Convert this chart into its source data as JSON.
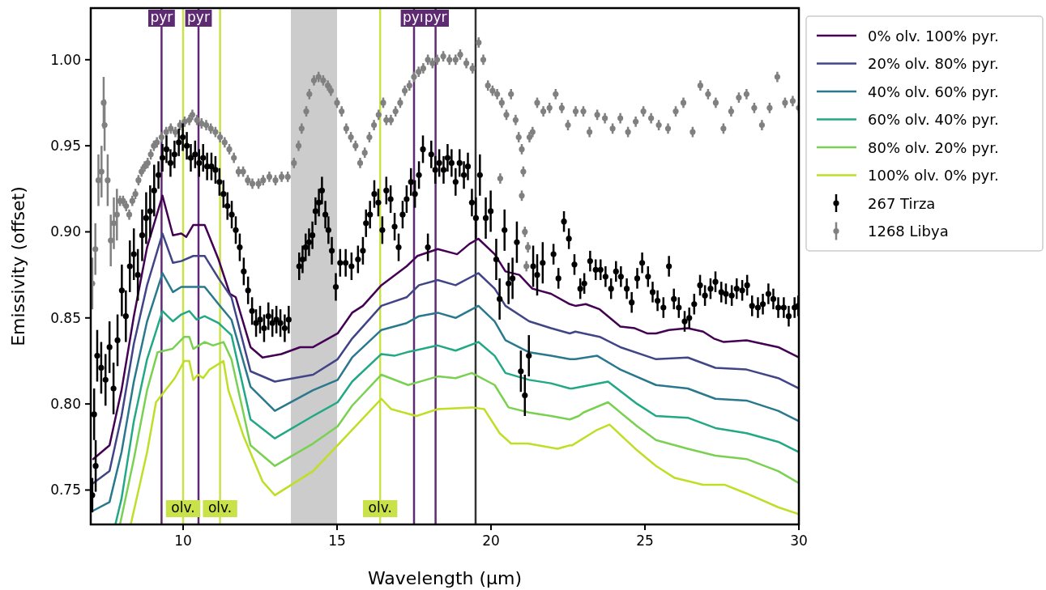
{
  "chart_data": {
    "type": "line",
    "xlabel": "Wavelength (μm)",
    "ylabel": "Emissivity (offset)",
    "xlim": [
      7,
      30
    ],
    "xticks": [
      10,
      15,
      20,
      25,
      30
    ],
    "ylim": [
      0.73,
      1.03
    ],
    "yticks": [
      0.75,
      {
        "value": 0.8,
        "label": "0.80"
      },
      0.85,
      {
        "value": 0.9,
        "label": "0.90"
      },
      0.95,
      {
        "value": 1,
        "label": "1.00"
      }
    ],
    "grid": false,
    "legend": "right",
    "line_style": "solid",
    "bands": [
      {
        "axis": "x",
        "from": 13.5,
        "to": 15,
        "color": "#cccccc"
      }
    ],
    "ref_lines": [
      {
        "axis": "x",
        "value": 9.3,
        "label": "pyr",
        "color": "#5e2a72"
      },
      {
        "axis": "x",
        "value": 10.5,
        "label": "pyr",
        "color": "#5e2a72"
      },
      {
        "axis": "x",
        "value": 17.5,
        "label": "pyr",
        "color": "#5e2a72"
      },
      {
        "axis": "x",
        "value": 18.2,
        "label": "pyr",
        "color": "#5e2a72"
      },
      {
        "axis": "x",
        "value": 10,
        "label": "olv.",
        "color": "#c9e24a"
      },
      {
        "axis": "x",
        "value": 11.2,
        "label": "olv.",
        "color": "#c9e24a"
      },
      {
        "axis": "x",
        "value": 16.4,
        "label": "olv.",
        "color": "#c9e24a"
      },
      {
        "axis": "x",
        "value": 19.5,
        "color": "#333333"
      }
    ],
    "series": [
      {
        "name": "0% olv. 100% pyr.",
        "color": "#440154",
        "x": [
          7.08,
          7.61,
          8.0,
          8.4,
          8.83,
          9.33,
          9.67,
          9.94,
          10.1,
          10.33,
          10.7,
          11.15,
          11.52,
          11.71,
          12.19,
          12.58,
          13.19,
          13.8,
          14.22,
          14.62,
          15.02,
          15.49,
          15.84,
          16.44,
          17.26,
          17.61,
          18.27,
          18.9,
          19.3,
          19.59,
          20.12,
          20.47,
          20.92,
          21.34,
          21.95,
          22.56,
          22.74,
          23.08,
          23.53,
          24.2,
          24.67,
          25.07,
          25.36,
          25.78,
          26.39,
          26.89,
          27.24,
          27.56,
          28.3,
          29.33,
          30
        ],
        "values": [
          0.768,
          0.776,
          0.808,
          0.851,
          0.891,
          0.921,
          0.898,
          0.899,
          0.897,
          0.904,
          0.904,
          0.884,
          0.864,
          0.862,
          0.833,
          0.827,
          0.829,
          0.833,
          0.833,
          0.837,
          0.841,
          0.853,
          0.857,
          0.869,
          0.88,
          0.886,
          0.89,
          0.887,
          0.893,
          0.896,
          0.887,
          0.877,
          0.875,
          0.867,
          0.864,
          0.858,
          0.857,
          0.858,
          0.855,
          0.845,
          0.844,
          0.841,
          0.841,
          0.843,
          0.844,
          0.842,
          0.838,
          0.836,
          0.837,
          0.833,
          0.827
        ]
      },
      {
        "name": "20% olv. 80% pyr.",
        "color": "#414487",
        "x": [
          7.08,
          7.61,
          8.0,
          8.4,
          8.83,
          9.33,
          9.67,
          9.94,
          10.33,
          10.7,
          11.15,
          11.57,
          12.19,
          12.98,
          14.22,
          15.02,
          15.49,
          16.44,
          17.26,
          17.66,
          18.27,
          18.85,
          19.59,
          20.12,
          20.47,
          21.24,
          21.95,
          22.56,
          22.74,
          23.53,
          24.2,
          25.36,
          26.39,
          27.29,
          28.3,
          29.33,
          30
        ],
        "values": [
          0.754,
          0.761,
          0.793,
          0.835,
          0.869,
          0.899,
          0.882,
          0.883,
          0.886,
          0.886,
          0.873,
          0.862,
          0.819,
          0.813,
          0.817,
          0.826,
          0.838,
          0.857,
          0.862,
          0.869,
          0.872,
          0.869,
          0.876,
          0.867,
          0.857,
          0.848,
          0.844,
          0.841,
          0.842,
          0.839,
          0.833,
          0.826,
          0.827,
          0.821,
          0.82,
          0.815,
          0.809
        ]
      },
      {
        "name": "40% olv. 60% pyr.",
        "color": "#2a788e",
        "x": [
          7.08,
          7.61,
          8.0,
          8.4,
          8.83,
          9.33,
          9.67,
          9.94,
          10.33,
          10.7,
          11.15,
          11.57,
          12.19,
          12.98,
          14.22,
          15.02,
          15.49,
          16.44,
          17.26,
          17.66,
          18.27,
          18.85,
          19.59,
          20.12,
          20.47,
          21.24,
          21.95,
          22.56,
          22.74,
          23.45,
          24.2,
          25.36,
          26.39,
          27.29,
          28.3,
          29.33,
          30
        ],
        "values": [
          0.738,
          0.743,
          0.772,
          0.813,
          0.848,
          0.876,
          0.865,
          0.868,
          0.868,
          0.868,
          0.858,
          0.849,
          0.81,
          0.796,
          0.808,
          0.814,
          0.827,
          0.843,
          0.847,
          0.851,
          0.853,
          0.85,
          0.857,
          0.848,
          0.837,
          0.83,
          0.828,
          0.826,
          0.826,
          0.828,
          0.82,
          0.811,
          0.809,
          0.803,
          0.802,
          0.796,
          0.79
        ]
      },
      {
        "name": "60% olv. 40% pyr.",
        "color": "#22a884",
        "x": [
          7.8,
          8.0,
          8.4,
          8.83,
          9.33,
          9.67,
          9.94,
          10.2,
          10.44,
          10.7,
          11.15,
          11.57,
          12.19,
          12.98,
          14.22,
          15.02,
          15.49,
          16.44,
          16.86,
          17.26,
          18.27,
          18.85,
          19.59,
          20.12,
          20.47,
          21.24,
          21.95,
          22.56,
          22.64,
          23.8,
          24.75,
          25.36,
          26.39,
          27.29,
          28.3,
          29.33,
          30
        ],
        "values": [
          0.73,
          0.745,
          0.79,
          0.826,
          0.854,
          0.848,
          0.852,
          0.854,
          0.849,
          0.851,
          0.847,
          0.84,
          0.791,
          0.78,
          0.793,
          0.801,
          0.813,
          0.829,
          0.828,
          0.83,
          0.834,
          0.831,
          0.836,
          0.828,
          0.818,
          0.814,
          0.812,
          0.809,
          0.809,
          0.813,
          0.8,
          0.793,
          0.792,
          0.786,
          0.783,
          0.778,
          0.772
        ]
      },
      {
        "name": "80% olv. 20% pyr.",
        "color": "#7ad151",
        "x": [
          7.95,
          8.4,
          8.83,
          9.17,
          9.65,
          10.04,
          10.2,
          10.33,
          10.7,
          10.97,
          11.31,
          11.57,
          12.19,
          12.98,
          14.22,
          15.02,
          15.49,
          16.44,
          17.31,
          18.27,
          18.85,
          19.38,
          20.12,
          20.57,
          21.24,
          21.95,
          22.56,
          22.85,
          23.0,
          23.8,
          24.75,
          25.36,
          26.39,
          27.29,
          28.3,
          29.33,
          30
        ],
        "values": [
          0.73,
          0.768,
          0.808,
          0.83,
          0.832,
          0.839,
          0.839,
          0.832,
          0.836,
          0.834,
          0.836,
          0.826,
          0.776,
          0.764,
          0.777,
          0.787,
          0.799,
          0.817,
          0.811,
          0.816,
          0.815,
          0.818,
          0.811,
          0.798,
          0.795,
          0.793,
          0.791,
          0.793,
          0.795,
          0.801,
          0.787,
          0.779,
          0.774,
          0.77,
          0.768,
          0.761,
          0.754
        ]
      },
      {
        "name": "100% olv. 0% pyr.",
        "color": "#bddf26",
        "x": [
          8.3,
          8.83,
          9.12,
          9.73,
          10.04,
          10.2,
          10.33,
          10.49,
          10.65,
          10.86,
          11.31,
          11.47,
          11.97,
          12.58,
          12.98,
          14.22,
          15.02,
          15.49,
          16.44,
          16.76,
          17.58,
          18.27,
          19.38,
          19.78,
          20.28,
          20.65,
          21.2,
          22.16,
          22.56,
          22.64,
          23.45,
          23.85,
          24.75,
          25.36,
          25.97,
          26.89,
          27.6,
          28.3,
          29.33,
          30
        ],
        "values": [
          0.73,
          0.772,
          0.801,
          0.815,
          0.825,
          0.825,
          0.814,
          0.817,
          0.815,
          0.82,
          0.825,
          0.808,
          0.781,
          0.755,
          0.747,
          0.761,
          0.776,
          0.785,
          0.803,
          0.797,
          0.793,
          0.797,
          0.798,
          0.797,
          0.783,
          0.777,
          0.777,
          0.774,
          0.776,
          0.776,
          0.785,
          0.788,
          0.773,
          0.764,
          0.757,
          0.753,
          0.753,
          0.748,
          0.74,
          0.736
        ]
      },
      {
        "name": "267 Tirza",
        "type": "scatter",
        "marker": "circle",
        "color": "#000000",
        "x": [
          7.05,
          7.11,
          7.16,
          7.21,
          7.34,
          7.48,
          7.61,
          7.74,
          7.87,
          8.01,
          8.14,
          8.27,
          8.4,
          8.53,
          8.67,
          8.8,
          8.93,
          9.06,
          9.2,
          9.33,
          9.46,
          9.59,
          9.72,
          9.86,
          9.99,
          10.12,
          10.25,
          10.39,
          10.52,
          10.65,
          10.78,
          10.92,
          11.05,
          11.18,
          11.31,
          11.44,
          11.58,
          11.71,
          11.84,
          11.97,
          12.11,
          12.24,
          12.37,
          12.5,
          12.63,
          12.77,
          12.9,
          13.03,
          13.16,
          13.3,
          13.43,
          13.77,
          13.88,
          13.98,
          14.09,
          14.2,
          14.3,
          14.41,
          14.51,
          14.62,
          14.72,
          14.83,
          14.96,
          15.1,
          15.28,
          15.47,
          15.68,
          15.84,
          15.94,
          16.07,
          16.21,
          16.34,
          16.47,
          16.6,
          16.74,
          16.87,
          17.0,
          17.13,
          17.26,
          17.4,
          17.53,
          17.66,
          17.79,
          17.95,
          18.06,
          18.19,
          18.32,
          18.46,
          18.59,
          18.72,
          18.85,
          18.98,
          19.12,
          19.25,
          19.38,
          19.51,
          19.64,
          19.83,
          19.99,
          20.17,
          20.28,
          20.44,
          20.57,
          20.7,
          20.84,
          20.97,
          21.1,
          21.23,
          21.37,
          21.5,
          21.68,
          22.03,
          22.19,
          22.37,
          22.53,
          22.71,
          22.9,
          23.03,
          23.22,
          23.4,
          23.56,
          23.72,
          23.9,
          24.06,
          24.22,
          24.41,
          24.57,
          24.75,
          24.91,
          25.1,
          25.25,
          25.41,
          25.6,
          25.78,
          25.94,
          26.1,
          26.29,
          26.44,
          26.6,
          26.79,
          26.95,
          27.13,
          27.29,
          27.48,
          27.63,
          27.82,
          27.98,
          28.16,
          28.32,
          28.48,
          28.67,
          28.83,
          29.01,
          29.17,
          29.33,
          29.51,
          29.67,
          29.86,
          29.98
        ],
        "values": [
          0.747,
          0.794,
          0.764,
          0.828,
          0.821,
          0.814,
          0.833,
          0.809,
          0.837,
          0.866,
          0.851,
          0.88,
          0.887,
          0.875,
          0.898,
          0.908,
          0.912,
          0.924,
          0.933,
          0.943,
          0.948,
          0.94,
          0.945,
          0.952,
          0.955,
          0.95,
          0.943,
          0.945,
          0.94,
          0.943,
          0.938,
          0.938,
          0.936,
          0.929,
          0.922,
          0.915,
          0.91,
          0.901,
          0.891,
          0.877,
          0.866,
          0.854,
          0.847,
          0.849,
          0.844,
          0.851,
          0.847,
          0.849,
          0.847,
          0.844,
          0.849,
          0.88,
          0.884,
          0.891,
          0.894,
          0.898,
          0.912,
          0.917,
          0.924,
          0.91,
          0.901,
          0.889,
          0.868,
          0.882,
          0.882,
          0.88,
          0.884,
          0.889,
          0.905,
          0.91,
          0.922,
          0.917,
          0.901,
          0.924,
          0.919,
          0.903,
          0.891,
          0.91,
          0.919,
          0.929,
          0.922,
          0.933,
          0.948,
          0.891,
          0.945,
          0.936,
          0.94,
          0.936,
          0.943,
          0.94,
          0.929,
          0.94,
          0.933,
          0.938,
          0.917,
          0.908,
          0.933,
          0.908,
          0.912,
          0.884,
          0.861,
          0.901,
          0.87,
          0.873,
          0.894,
          0.819,
          0.805,
          0.828,
          0.88,
          0.875,
          0.882,
          0.887,
          0.873,
          0.906,
          0.896,
          0.881,
          0.867,
          0.87,
          0.883,
          0.878,
          0.878,
          0.874,
          0.867,
          0.877,
          0.874,
          0.867,
          0.859,
          0.873,
          0.882,
          0.874,
          0.865,
          0.86,
          0.856,
          0.88,
          0.861,
          0.856,
          0.848,
          0.85,
          0.858,
          0.869,
          0.863,
          0.867,
          0.871,
          0.865,
          0.864,
          0.863,
          0.867,
          0.866,
          0.869,
          0.857,
          0.856,
          0.858,
          0.864,
          0.861,
          0.856,
          0.856,
          0.851,
          0.856,
          0.857
        ],
        "errors": [
          0.01,
          0.015,
          0.015,
          0.015,
          0.015,
          0.015,
          0.015,
          0.015,
          0.015,
          0.015,
          0.015,
          0.015,
          0.015,
          0.015,
          0.015,
          0.015,
          0.015,
          0.015,
          0.008,
          0.008,
          0.008,
          0.008,
          0.008,
          0.008,
          0.008,
          0.008,
          0.008,
          0.008,
          0.008,
          0.008,
          0.008,
          0.008,
          0.008,
          0.008,
          0.008,
          0.008,
          0.008,
          0.008,
          0.008,
          0.008,
          0.008,
          0.008,
          0.008,
          0.008,
          0.008,
          0.008,
          0.008,
          0.008,
          0.008,
          0.008,
          0.008,
          0.008,
          0.008,
          0.008,
          0.008,
          0.008,
          0.008,
          0.008,
          0.008,
          0.008,
          0.008,
          0.008,
          0.008,
          0.008,
          0.008,
          0.008,
          0.008,
          0.008,
          0.008,
          0.008,
          0.008,
          0.008,
          0.008,
          0.008,
          0.008,
          0.008,
          0.008,
          0.008,
          0.008,
          0.008,
          0.008,
          0.008,
          0.008,
          0.008,
          0.008,
          0.008,
          0.008,
          0.008,
          0.008,
          0.008,
          0.008,
          0.008,
          0.008,
          0.008,
          0.008,
          0.012,
          0.012,
          0.012,
          0.012,
          0.012,
          0.012,
          0.012,
          0.012,
          0.012,
          0.012,
          0.012,
          0.012,
          0.012,
          0.012,
          0.012,
          0.012,
          0.006,
          0.006,
          0.006,
          0.006,
          0.006,
          0.006,
          0.006,
          0.006,
          0.006,
          0.006,
          0.006,
          0.006,
          0.006,
          0.006,
          0.006,
          0.006,
          0.006,
          0.006,
          0.006,
          0.006,
          0.006,
          0.006,
          0.006,
          0.006,
          0.006,
          0.006,
          0.006,
          0.006,
          0.006,
          0.006,
          0.006,
          0.006,
          0.006,
          0.006,
          0.006,
          0.006,
          0.006,
          0.006,
          0.006,
          0.006,
          0.006,
          0.006,
          0.006,
          0.006,
          0.006,
          0.006,
          0.006,
          0.006
        ]
      },
      {
        "name": "1268 Libya",
        "type": "scatter",
        "marker": "circle",
        "color": "#808080",
        "x": [
          7.05,
          7.15,
          7.25,
          7.35,
          7.42,
          7.45,
          7.55,
          7.65,
          7.75,
          7.85,
          7.95,
          8.05,
          8.15,
          8.25,
          8.35,
          8.45,
          8.55,
          8.65,
          8.75,
          8.85,
          8.95,
          9.05,
          9.15,
          9.3,
          9.45,
          9.6,
          9.75,
          9.9,
          10.05,
          10.2,
          10.3,
          10.45,
          10.6,
          10.75,
          10.9,
          11.05,
          11.2,
          11.35,
          11.5,
          11.65,
          11.8,
          11.95,
          12.1,
          12.25,
          12.45,
          12.6,
          12.8,
          13.0,
          13.2,
          13.4,
          13.6,
          13.75,
          13.85,
          14.0,
          14.1,
          14.25,
          14.4,
          14.55,
          14.7,
          14.8,
          15.0,
          15.15,
          15.3,
          15.45,
          15.6,
          15.75,
          15.9,
          16.05,
          16.2,
          16.35,
          16.5,
          16.6,
          16.75,
          16.9,
          17.05,
          17.2,
          17.35,
          17.5,
          17.65,
          17.8,
          17.95,
          18.1,
          18.25,
          18.45,
          18.65,
          18.85,
          19.0,
          19.2,
          19.4,
          19.6,
          19.75,
          19.9,
          20.05,
          20.2,
          20.3,
          20.35,
          20.5,
          20.65,
          20.8,
          20.9,
          21.0,
          21.0,
          21.05,
          21.1,
          21.15,
          21.2,
          21.25,
          21.35,
          21.5,
          21.7,
          21.9,
          22.1,
          22.3,
          22.5,
          22.75,
          23.0,
          23.2,
          23.45,
          23.7,
          23.95,
          24.2,
          24.45,
          24.7,
          24.95,
          25.2,
          25.45,
          25.75,
          26.0,
          26.25,
          26.55,
          26.8,
          27.05,
          27.3,
          27.55,
          27.8,
          28.05,
          28.3,
          28.55,
          28.8,
          29.05,
          29.3,
          29.55,
          29.8,
          30.0
        ],
        "values": [
          0.87,
          0.89,
          0.93,
          0.935,
          0.975,
          0.962,
          0.93,
          0.895,
          0.905,
          0.91,
          0.918,
          0.918,
          0.915,
          0.91,
          0.918,
          0.922,
          0.93,
          0.935,
          0.938,
          0.94,
          0.945,
          0.95,
          0.952,
          0.955,
          0.958,
          0.96,
          0.958,
          0.962,
          0.964,
          0.965,
          0.968,
          0.965,
          0.963,
          0.962,
          0.96,
          0.958,
          0.955,
          0.952,
          0.948,
          0.943,
          0.935,
          0.935,
          0.93,
          0.928,
          0.928,
          0.93,
          0.932,
          0.93,
          0.932,
          0.932,
          0.94,
          0.95,
          0.96,
          0.97,
          0.98,
          0.988,
          0.99,
          0.988,
          0.985,
          0.982,
          0.975,
          0.97,
          0.96,
          0.955,
          0.95,
          0.94,
          0.946,
          0.955,
          0.962,
          0.968,
          0.975,
          0.965,
          0.965,
          0.97,
          0.975,
          0.982,
          0.985,
          0.99,
          0.993,
          0.995,
          1.0,
          0.998,
          1.0,
          1.002,
          1.0,
          1.0,
          1.003,
          0.998,
          0.995,
          1.01,
          1.0,
          0.985,
          0.982,
          0.98,
          0.931,
          0.975,
          0.968,
          0.98,
          0.965,
          0.955,
          0.948,
          0.921,
          0.935,
          0.9,
          0.88,
          0.891,
          0.955,
          0.958,
          0.975,
          0.97,
          0.972,
          0.98,
          0.972,
          0.962,
          0.97,
          0.97,
          0.958,
          0.968,
          0.966,
          0.96,
          0.966,
          0.958,
          0.964,
          0.97,
          0.966,
          0.962,
          0.96,
          0.97,
          0.975,
          0.958,
          0.985,
          0.98,
          0.975,
          0.96,
          0.97,
          0.978,
          0.98,
          0.972,
          0.962,
          0.972,
          0.99,
          0.975,
          0.976,
          0.972
        ],
        "errors": [
          0.015,
          0.015,
          0.015,
          0.015,
          0.015,
          0.015,
          0.015,
          0.015,
          0.015,
          0.015,
          0.003,
          0.003,
          0.003,
          0.003,
          0.003,
          0.003,
          0.003,
          0.003,
          0.003,
          0.003,
          0.003,
          0.003,
          0.003,
          0.003,
          0.003,
          0.003,
          0.003,
          0.003,
          0.003,
          0.003,
          0.003,
          0.003,
          0.003,
          0.003,
          0.003,
          0.003,
          0.003,
          0.003,
          0.003,
          0.003,
          0.003,
          0.003,
          0.003,
          0.003,
          0.003,
          0.003,
          0.003,
          0.003,
          0.003,
          0.003,
          0.003,
          0.003,
          0.003,
          0.003,
          0.003,
          0.003,
          0.003,
          0.003,
          0.003,
          0.003,
          0.003,
          0.003,
          0.003,
          0.003,
          0.003,
          0.003,
          0.003,
          0.003,
          0.003,
          0.003,
          0.003,
          0.003,
          0.003,
          0.003,
          0.003,
          0.003,
          0.003,
          0.003,
          0.003,
          0.003,
          0.003,
          0.003,
          0.003,
          0.003,
          0.003,
          0.003,
          0.003,
          0.003,
          0.003,
          0.003,
          0.003,
          0.003,
          0.003,
          0.003,
          0.003,
          0.003,
          0.003,
          0.003,
          0.003,
          0.003,
          0.003,
          0.003,
          0.003,
          0.003,
          0.003,
          0.003,
          0.003,
          0.003,
          0.003,
          0.003,
          0.003,
          0.003,
          0.003,
          0.003,
          0.003,
          0.003,
          0.003,
          0.003,
          0.003,
          0.003,
          0.003,
          0.003,
          0.003,
          0.003,
          0.003,
          0.003,
          0.003,
          0.003,
          0.003,
          0.003,
          0.003,
          0.003,
          0.003,
          0.003,
          0.003,
          0.003,
          0.003,
          0.003,
          0.003,
          0.003,
          0.003,
          0.003,
          0.003,
          0.003
        ]
      }
    ]
  }
}
